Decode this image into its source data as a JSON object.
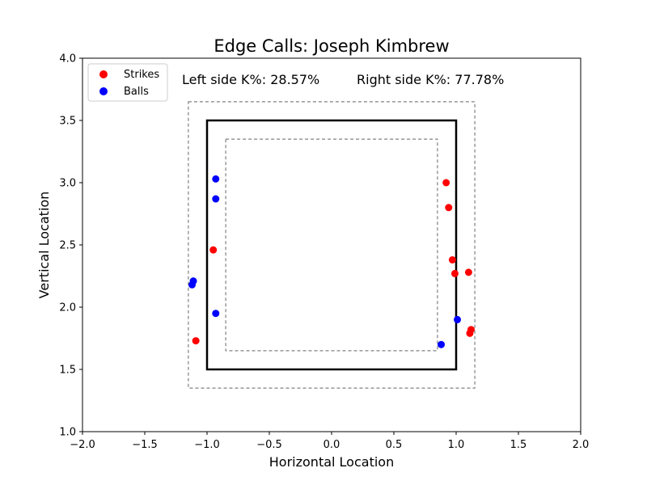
{
  "chart_data": {
    "type": "scatter",
    "title": "Edge Calls: Joseph Kimbrew",
    "xlabel": "Horizontal Location",
    "ylabel": "Vertical Location",
    "xlim": [
      -2.0,
      2.0
    ],
    "ylim": [
      1.0,
      4.0
    ],
    "x_ticks": [
      "−2.0",
      "−1.5",
      "−1.0",
      "−0.5",
      "0.0",
      "0.5",
      "1.0",
      "1.5",
      "2.0"
    ],
    "x_tick_values": [
      -2.0,
      -1.5,
      -1.0,
      -0.5,
      0.0,
      0.5,
      1.0,
      1.5,
      2.0
    ],
    "y_ticks": [
      "1.0",
      "1.5",
      "2.0",
      "2.5",
      "3.0",
      "3.5",
      "4.0"
    ],
    "y_tick_values": [
      1.0,
      1.5,
      2.0,
      2.5,
      3.0,
      3.5,
      4.0
    ],
    "grid": false,
    "legend_position": "top-left",
    "annotations": {
      "left": "Left side K%: 28.57%",
      "right": "Right side K%: 77.78%"
    },
    "zones": {
      "strike_zone": {
        "x": [
          -1.0,
          1.0
        ],
        "y": [
          1.5,
          3.5
        ],
        "style": "solid",
        "color": "#000000"
      },
      "outer_edge": {
        "x": [
          -1.15,
          1.15
        ],
        "y": [
          1.35,
          3.65
        ],
        "style": "dashed",
        "color": "#808080"
      },
      "inner_edge": {
        "x": [
          -0.85,
          0.85
        ],
        "y": [
          1.65,
          3.35
        ],
        "style": "dashed",
        "color": "#808080"
      }
    },
    "series": [
      {
        "name": "Strikes",
        "color": "#ff0000",
        "points": [
          {
            "x": -0.95,
            "y": 2.46
          },
          {
            "x": -1.09,
            "y": 1.73
          },
          {
            "x": 0.92,
            "y": 3.0
          },
          {
            "x": 0.94,
            "y": 2.8
          },
          {
            "x": 0.97,
            "y": 2.38
          },
          {
            "x": 0.99,
            "y": 2.27
          },
          {
            "x": 1.1,
            "y": 2.28
          },
          {
            "x": 1.12,
            "y": 1.82
          },
          {
            "x": 1.11,
            "y": 1.79
          }
        ]
      },
      {
        "name": "Balls",
        "color": "#0000ff",
        "points": [
          {
            "x": -0.93,
            "y": 3.03
          },
          {
            "x": -0.93,
            "y": 2.87
          },
          {
            "x": -1.11,
            "y": 2.21
          },
          {
            "x": -1.12,
            "y": 2.18
          },
          {
            "x": -0.93,
            "y": 1.95
          },
          {
            "x": 1.01,
            "y": 1.9
          },
          {
            "x": 0.88,
            "y": 1.7
          }
        ]
      }
    ]
  }
}
